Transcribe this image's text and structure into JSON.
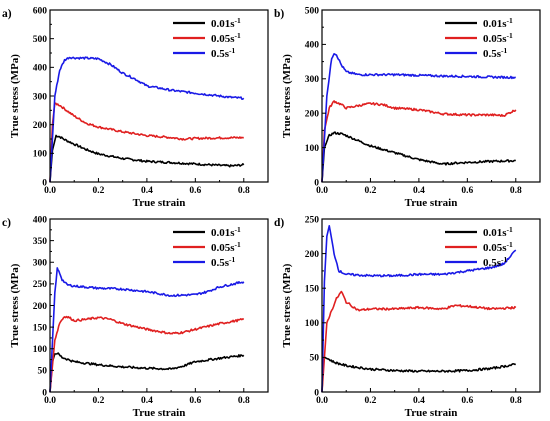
{
  "chart_data": [
    {
      "type": "line",
      "panel_label": "a)",
      "xlabel": "True strain",
      "ylabel": "True stress (MPa)",
      "xlim": [
        0,
        0.9
      ],
      "ylim": [
        0,
        600
      ],
      "xticks": [
        "0.0",
        "0.2",
        "0.4",
        "0.6",
        "0.8"
      ],
      "yticks": [
        "0",
        "100",
        "200",
        "300",
        "400",
        "500",
        "600"
      ],
      "legend_position": "top-right",
      "series": [
        {
          "name": "0.01s",
          "sup": "-1",
          "color": "#000000",
          "x": [
            0,
            0.01,
            0.025,
            0.04,
            0.06,
            0.1,
            0.15,
            0.2,
            0.3,
            0.4,
            0.5,
            0.6,
            0.7,
            0.75,
            0.8
          ],
          "y": [
            0,
            110,
            162,
            158,
            148,
            132,
            113,
            98,
            82,
            72,
            68,
            63,
            58,
            56,
            60
          ]
        },
        {
          "name": "0.05s",
          "sup": "-1",
          "color": "#e02020",
          "x": [
            0,
            0.01,
            0.02,
            0.04,
            0.06,
            0.1,
            0.15,
            0.2,
            0.3,
            0.4,
            0.5,
            0.55,
            0.6,
            0.7,
            0.8
          ],
          "y": [
            0,
            200,
            275,
            268,
            255,
            230,
            205,
            192,
            175,
            162,
            155,
            150,
            152,
            154,
            155
          ]
        },
        {
          "name": "0.5s",
          "sup": "-1",
          "color": "#1a1ae6",
          "x": [
            0,
            0.02,
            0.04,
            0.06,
            0.08,
            0.1,
            0.15,
            0.2,
            0.25,
            0.3,
            0.35,
            0.4,
            0.45,
            0.5,
            0.55,
            0.6,
            0.65,
            0.7,
            0.75,
            0.8
          ],
          "y": [
            0,
            300,
            390,
            425,
            435,
            433,
            432,
            430,
            410,
            380,
            360,
            335,
            328,
            320,
            315,
            310,
            305,
            300,
            295,
            292
          ]
        }
      ]
    },
    {
      "type": "line",
      "panel_label": "b)",
      "xlabel": "True strain",
      "ylabel": "True stress (MPa)",
      "xlim": [
        0,
        0.9
      ],
      "ylim": [
        0,
        500
      ],
      "xticks": [
        "0.0",
        "0.2",
        "0.4",
        "0.6",
        "0.8"
      ],
      "yticks": [
        "0",
        "100",
        "200",
        "300",
        "400",
        "500"
      ],
      "legend_position": "top-right",
      "series": [
        {
          "name": "0.01s",
          "sup": "-1",
          "color": "#000000",
          "x": [
            0,
            0.01,
            0.03,
            0.05,
            0.08,
            0.1,
            0.15,
            0.2,
            0.3,
            0.4,
            0.5,
            0.55,
            0.6,
            0.7,
            0.8
          ],
          "y": [
            0,
            100,
            135,
            143,
            140,
            135,
            120,
            105,
            85,
            65,
            52,
            55,
            57,
            60,
            62
          ]
        },
        {
          "name": "0.05s",
          "sup": "-1",
          "color": "#e02020",
          "x": [
            0,
            0.01,
            0.03,
            0.05,
            0.08,
            0.1,
            0.15,
            0.2,
            0.25,
            0.3,
            0.4,
            0.5,
            0.6,
            0.7,
            0.75,
            0.8
          ],
          "y": [
            0,
            150,
            215,
            235,
            225,
            215,
            222,
            228,
            225,
            215,
            210,
            198,
            195,
            195,
            193,
            210
          ]
        },
        {
          "name": "0.5s",
          "sup": "-1",
          "color": "#1a1ae6",
          "x": [
            0,
            0.02,
            0.04,
            0.05,
            0.06,
            0.08,
            0.1,
            0.15,
            0.2,
            0.3,
            0.4,
            0.5,
            0.6,
            0.7,
            0.8
          ],
          "y": [
            0,
            250,
            360,
            375,
            370,
            340,
            320,
            312,
            312,
            312,
            310,
            308,
            307,
            305,
            304
          ]
        }
      ]
    },
    {
      "type": "line",
      "panel_label": "c)",
      "xlabel": "True strain",
      "ylabel": "True stress (MPa)",
      "xlim": [
        0,
        0.9
      ],
      "ylim": [
        0,
        400
      ],
      "xticks": [
        "0.0",
        "0.2",
        "0.4",
        "0.6",
        "0.8"
      ],
      "yticks": [
        "0",
        "50",
        "100",
        "150",
        "200",
        "250",
        "300",
        "350",
        "400"
      ],
      "legend_position": "top-right",
      "series": [
        {
          "name": "0.01s",
          "sup": "-1",
          "color": "#000000",
          "x": [
            0,
            0.01,
            0.02,
            0.03,
            0.05,
            0.1,
            0.2,
            0.3,
            0.4,
            0.5,
            0.55,
            0.6,
            0.7,
            0.8
          ],
          "y": [
            0,
            70,
            88,
            90,
            80,
            70,
            63,
            58,
            55,
            53,
            60,
            70,
            78,
            85
          ]
        },
        {
          "name": "0.05s",
          "sup": "-1",
          "color": "#e02020",
          "x": [
            0,
            0.02,
            0.04,
            0.06,
            0.08,
            0.1,
            0.15,
            0.2,
            0.25,
            0.3,
            0.4,
            0.5,
            0.55,
            0.6,
            0.7,
            0.8
          ],
          "y": [
            0,
            120,
            160,
            175,
            172,
            165,
            168,
            172,
            168,
            158,
            145,
            135,
            138,
            145,
            158,
            168
          ]
        },
        {
          "name": "0.5s",
          "sup": "-1",
          "color": "#1a1ae6",
          "x": [
            0,
            0.02,
            0.03,
            0.04,
            0.05,
            0.07,
            0.1,
            0.2,
            0.3,
            0.4,
            0.5,
            0.6,
            0.65,
            0.7,
            0.8
          ],
          "y": [
            0,
            230,
            285,
            275,
            260,
            248,
            245,
            240,
            238,
            232,
            223,
            225,
            232,
            243,
            255
          ]
        }
      ]
    },
    {
      "type": "line",
      "panel_label": "d)",
      "xlabel": "True strain",
      "ylabel": "True stress (MPa)",
      "xlim": [
        0,
        0.9
      ],
      "ylim": [
        0,
        250
      ],
      "xticks": [
        "0.0",
        "0.2",
        "0.4",
        "0.6",
        "0.8"
      ],
      "yticks": [
        "0",
        "50",
        "100",
        "150",
        "200",
        "250"
      ],
      "legend_position": "top-right",
      "series": [
        {
          "name": "0.01s",
          "sup": "-1",
          "color": "#000000",
          "x": [
            0,
            0.005,
            0.01,
            0.03,
            0.05,
            0.1,
            0.2,
            0.3,
            0.4,
            0.5,
            0.6,
            0.7,
            0.8
          ],
          "y": [
            0,
            40,
            50,
            47,
            43,
            38,
            33,
            31,
            30,
            30,
            31,
            34,
            40
          ]
        },
        {
          "name": "0.05s",
          "sup": "-1",
          "color": "#e02020",
          "x": [
            0,
            0.02,
            0.04,
            0.06,
            0.08,
            0.1,
            0.15,
            0.2,
            0.3,
            0.4,
            0.5,
            0.55,
            0.6,
            0.7,
            0.8
          ],
          "y": [
            0,
            100,
            118,
            135,
            145,
            130,
            118,
            120,
            120,
            122,
            120,
            125,
            124,
            120,
            122
          ]
        },
        {
          "name": "0.5s",
          "sup": "-1",
          "color": "#1a1ae6",
          "x": [
            0,
            0.01,
            0.02,
            0.03,
            0.05,
            0.07,
            0.1,
            0.2,
            0.3,
            0.4,
            0.5,
            0.6,
            0.7,
            0.75,
            0.8
          ],
          "y": [
            0,
            160,
            225,
            240,
            200,
            175,
            170,
            168,
            168,
            170,
            170,
            175,
            180,
            185,
            205
          ]
        }
      ]
    }
  ]
}
